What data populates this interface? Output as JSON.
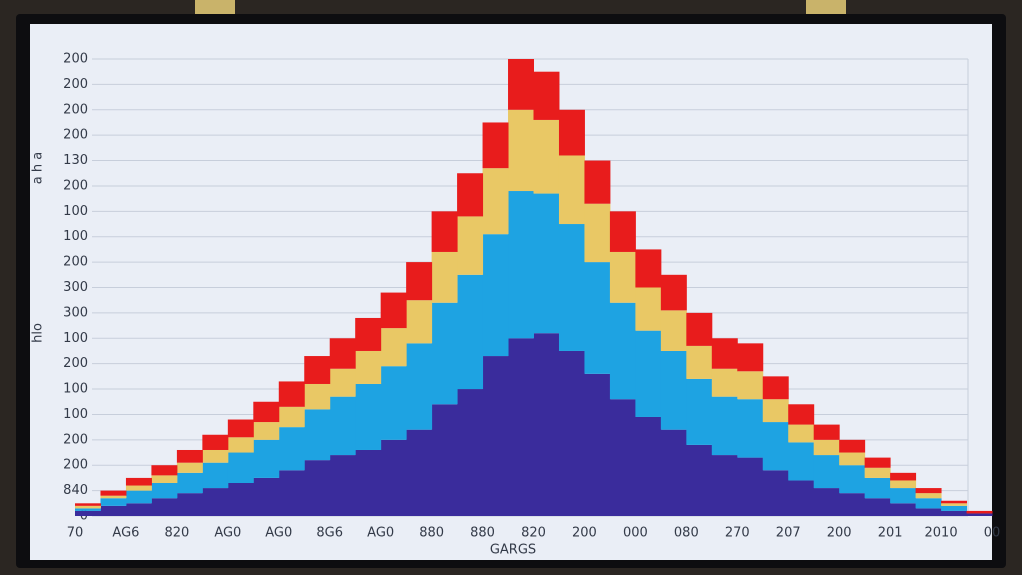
{
  "chart_data": {
    "type": "stacked-bar",
    "ylabel": "a h a",
    "ylabel_2": "hlo",
    "xlabel": "GARGS",
    "xlim": [
      0,
      18
    ],
    "xticks": [
      {
        "value": 0,
        "label": "70"
      },
      {
        "value": 1,
        "label": "AG6"
      },
      {
        "value": 2,
        "label": "820"
      },
      {
        "value": 3,
        "label": "AG0"
      },
      {
        "value": 4,
        "label": "AG0"
      },
      {
        "value": 5,
        "label": "8G6"
      },
      {
        "value": 6,
        "label": "AG0"
      },
      {
        "value": 7,
        "label": "880"
      },
      {
        "value": 8,
        "label": "880"
      },
      {
        "value": 9,
        "label": "820"
      },
      {
        "value": 10,
        "label": "200"
      },
      {
        "value": 11,
        "label": "000"
      },
      {
        "value": 12,
        "label": "080"
      },
      {
        "value": 13,
        "label": "270"
      },
      {
        "value": 14,
        "label": "207"
      },
      {
        "value": 15,
        "label": "200"
      },
      {
        "value": 16,
        "label": "201"
      },
      {
        "value": 17,
        "label": "2010"
      },
      {
        "value": 18,
        "label": "00"
      }
    ],
    "highlight_tick_color": "#d0103a",
    "highlight_ticks_from": 17,
    "ylim": [
      0,
      18
    ],
    "yticks": [
      {
        "value": 0,
        "label": "0"
      },
      {
        "value": 1,
        "label": "840"
      },
      {
        "value": 2,
        "label": "200"
      },
      {
        "value": 3,
        "label": "200"
      },
      {
        "value": 4,
        "label": "100"
      },
      {
        "value": 5,
        "label": "100"
      },
      {
        "value": 6,
        "label": "200"
      },
      {
        "value": 7,
        "label": "100"
      },
      {
        "value": 8,
        "label": "300"
      },
      {
        "value": 9,
        "label": "300"
      },
      {
        "value": 10,
        "label": "200"
      },
      {
        "value": 11,
        "label": "100"
      },
      {
        "value": 12,
        "label": "100"
      },
      {
        "value": 13,
        "label": "200"
      },
      {
        "value": 14,
        "label": "130"
      },
      {
        "value": 15,
        "label": "200"
      },
      {
        "value": 16,
        "label": "200"
      },
      {
        "value": 17,
        "label": "200"
      },
      {
        "value": 18,
        "label": "200"
      }
    ],
    "grid": true,
    "x": [
      0,
      0.5,
      1,
      1.5,
      2,
      2.5,
      3,
      3.5,
      4,
      4.5,
      5,
      5.5,
      6,
      6.5,
      7,
      7.5,
      8,
      8.5,
      9,
      9.5,
      10,
      10.5,
      11,
      11.5,
      12,
      12.5,
      13,
      13.5,
      14,
      14.5,
      15,
      15.5,
      16,
      16.5,
      17,
      17.5
    ],
    "series": [
      {
        "color": "#3a2c9c",
        "values": [
          0.2,
          0.4,
          0.5,
          0.7,
          0.9,
          1.1,
          1.3,
          1.5,
          1.8,
          2.2,
          2.4,
          2.6,
          3.0,
          3.4,
          4.4,
          5.0,
          6.3,
          7.0,
          7.2,
          6.5,
          5.6,
          4.6,
          3.9,
          3.4,
          2.8,
          2.4,
          2.3,
          1.8,
          1.4,
          1.1,
          0.9,
          0.7,
          0.5,
          0.3,
          0.2,
          0.1
        ]
      },
      {
        "color": "#1ea3e2",
        "values": [
          0.1,
          0.3,
          0.5,
          0.6,
          0.8,
          1.0,
          1.2,
          1.5,
          1.7,
          2.0,
          2.3,
          2.6,
          2.9,
          3.4,
          4.0,
          4.5,
          4.8,
          5.8,
          5.5,
          5.0,
          4.4,
          3.8,
          3.4,
          3.1,
          2.6,
          2.3,
          2.3,
          1.9,
          1.5,
          1.3,
          1.1,
          0.8,
          0.6,
          0.4,
          0.2,
          0.0
        ]
      },
      {
        "color": "#e9c865",
        "values": [
          0.1,
          0.1,
          0.2,
          0.3,
          0.4,
          0.5,
          0.6,
          0.7,
          0.8,
          1.0,
          1.1,
          1.3,
          1.5,
          1.7,
          2.0,
          2.3,
          2.6,
          3.2,
          2.9,
          2.7,
          2.3,
          2.0,
          1.7,
          1.6,
          1.3,
          1.1,
          1.1,
          0.9,
          0.7,
          0.6,
          0.5,
          0.4,
          0.3,
          0.2,
          0.1,
          0.0
        ]
      },
      {
        "color": "#e81c1c",
        "values": [
          0.1,
          0.2,
          0.3,
          0.4,
          0.5,
          0.6,
          0.7,
          0.8,
          1.0,
          1.1,
          1.2,
          1.3,
          1.4,
          1.5,
          1.6,
          1.7,
          1.8,
          2.0,
          1.9,
          1.8,
          1.7,
          1.6,
          1.5,
          1.4,
          1.3,
          1.2,
          1.1,
          0.9,
          0.8,
          0.6,
          0.5,
          0.4,
          0.3,
          0.2,
          0.1,
          0.1
        ]
      }
    ]
  }
}
